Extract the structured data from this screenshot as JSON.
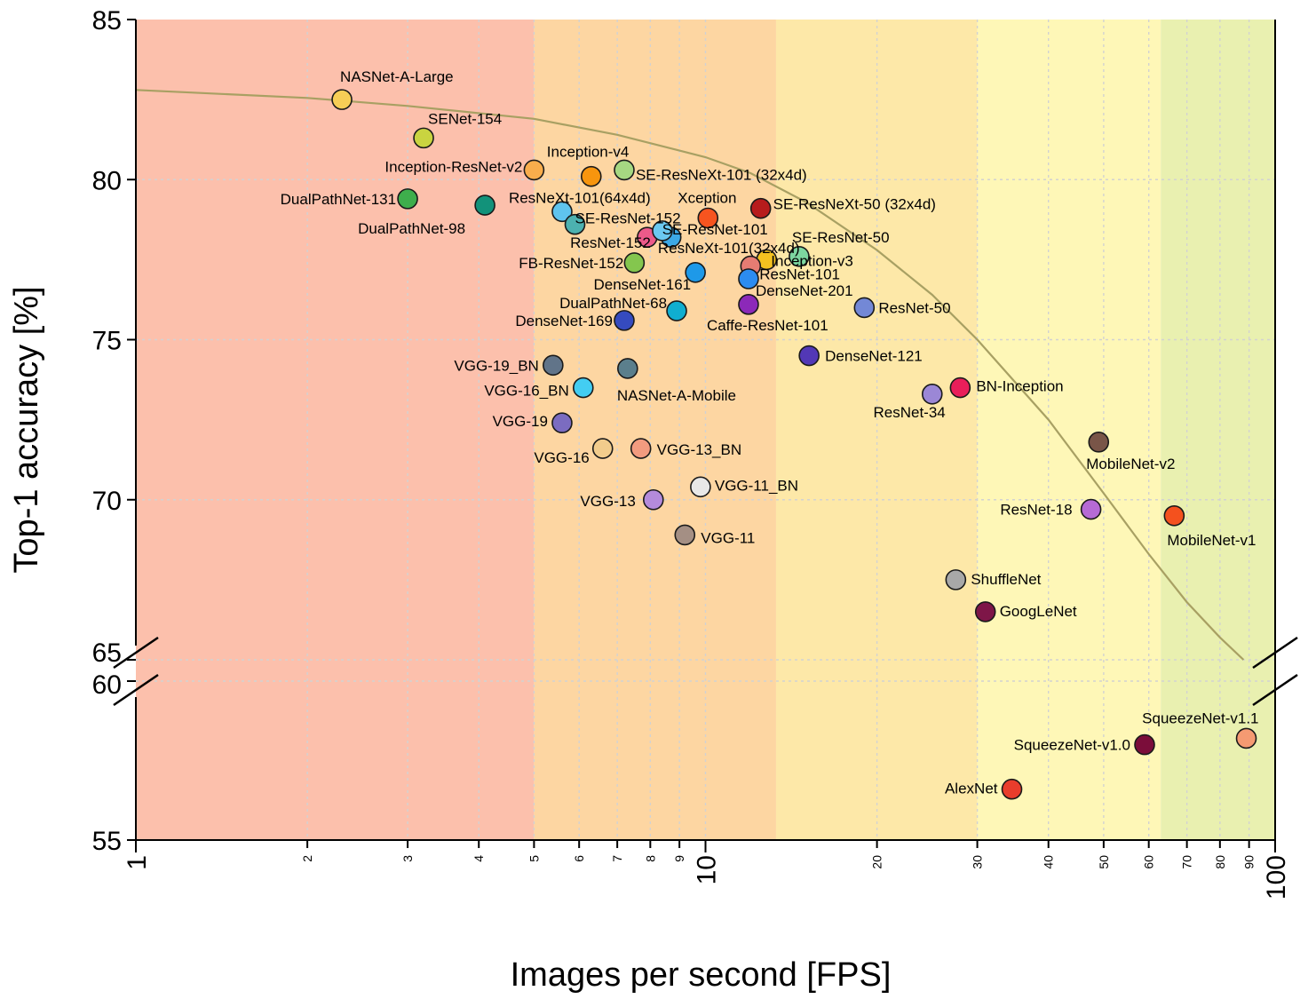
{
  "chart_data": {
    "type": "scatter",
    "title": "",
    "xlabel": "Images per second [FPS]",
    "ylabel": "Top-1 accuracy [%]",
    "xscale": "log",
    "xlim": [
      1,
      100
    ],
    "ylim": [
      55,
      85
    ],
    "y_axis_break": {
      "from": 60,
      "to": 65
    },
    "grid": true,
    "legend": "none",
    "x_ticks": [
      {
        "value": 1,
        "label": "1",
        "major": true
      },
      {
        "value": 2,
        "label": "2",
        "major": false
      },
      {
        "value": 3,
        "label": "3",
        "major": false
      },
      {
        "value": 4,
        "label": "4",
        "major": false
      },
      {
        "value": 5,
        "label": "5",
        "major": false
      },
      {
        "value": 6,
        "label": "6",
        "major": false
      },
      {
        "value": 7,
        "label": "7",
        "major": false
      },
      {
        "value": 8,
        "label": "8",
        "major": false
      },
      {
        "value": 9,
        "label": "9",
        "major": false
      },
      {
        "value": 10,
        "label": "10",
        "major": true
      },
      {
        "value": 20,
        "label": "20",
        "major": false
      },
      {
        "value": 30,
        "label": "30",
        "major": false
      },
      {
        "value": 40,
        "label": "40",
        "major": false
      },
      {
        "value": 50,
        "label": "50",
        "major": false
      },
      {
        "value": 60,
        "label": "60",
        "major": false
      },
      {
        "value": 70,
        "label": "70",
        "major": false
      },
      {
        "value": 80,
        "label": "80",
        "major": false
      },
      {
        "value": 90,
        "label": "90",
        "major": false
      },
      {
        "value": 100,
        "label": "100",
        "major": true
      }
    ],
    "y_ticks": [
      {
        "value": 85,
        "label": "85"
      },
      {
        "value": 80,
        "label": "80"
      },
      {
        "value": 75,
        "label": "75"
      },
      {
        "value": 70,
        "label": "70"
      },
      {
        "value": 65,
        "label": "65"
      },
      {
        "value": 60,
        "label": "60"
      },
      {
        "value": 55,
        "label": "55"
      }
    ],
    "background_bands": [
      {
        "from": 1,
        "to": 5,
        "color": "#fcc0ac"
      },
      {
        "from": 5,
        "to": 13.3,
        "color": "#fdd6a2"
      },
      {
        "from": 13.3,
        "to": 30,
        "color": "#fde8a8"
      },
      {
        "from": 30,
        "to": 63,
        "color": "#fef7b7"
      },
      {
        "from": 63,
        "to": 100,
        "color": "#e9f0b0"
      }
    ],
    "pareto_curve": {
      "color": "#a8a063",
      "points": [
        [
          1,
          82.8
        ],
        [
          2,
          82.55
        ],
        [
          3,
          82.3
        ],
        [
          5,
          81.9
        ],
        [
          7,
          81.4
        ],
        [
          10,
          80.7
        ],
        [
          12,
          80.2
        ],
        [
          15,
          79.3
        ],
        [
          20,
          77.8
        ],
        [
          25,
          76.4
        ],
        [
          30,
          75.0
        ],
        [
          40,
          72.5
        ],
        [
          50,
          70.2
        ],
        [
          60,
          68.3
        ],
        [
          70,
          66.8
        ],
        [
          80,
          65.7
        ],
        [
          88,
          65.0
        ]
      ]
    },
    "points": [
      {
        "name": "NASNet-A-Large",
        "fps": 2.3,
        "acc": 82.5,
        "color": "#f7ce56",
        "anchor": "start",
        "dx": -2,
        "dy": -20
      },
      {
        "name": "SENet-154",
        "fps": 3.2,
        "acc": 81.3,
        "color": "#c9d440",
        "anchor": "start",
        "dx": 5,
        "dy": -16
      },
      {
        "name": "Inception-ResNet-v2",
        "fps": 5.0,
        "acc": 80.3,
        "color": "#f8ad4c",
        "anchor": "end",
        "dx": -13,
        "dy": 2
      },
      {
        "name": "Inception-v4",
        "fps": 6.3,
        "acc": 80.1,
        "color": "#f7950e",
        "anchor": "start",
        "dx": -50,
        "dy": -22
      },
      {
        "name": "SE-ResNeXt-101 (32x4d)",
        "fps": 7.2,
        "acc": 80.3,
        "color": "#a6d882",
        "anchor": "start",
        "dx": 13,
        "dy": 11
      },
      {
        "name": "DualPathNet-131",
        "fps": 3.0,
        "acc": 79.4,
        "color": "#3eae4c",
        "anchor": "end",
        "dx": -13,
        "dy": 6
      },
      {
        "name": "DualPathNet-98",
        "fps": 4.1,
        "acc": 79.2,
        "color": "#12927a",
        "anchor": "end",
        "dx": -22,
        "dy": 32
      },
      {
        "name": "ResNeXt-101(64x4d)",
        "fps": 5.6,
        "acc": 79.0,
        "color": "#5fc4ee",
        "anchor": "start",
        "dx": -60,
        "dy": -10
      },
      {
        "name": "SE-ResNet-152",
        "fps": 5.9,
        "acc": 78.6,
        "color": "#4cb1b0",
        "anchor": "start",
        "dx": 0,
        "dy": -1
      },
      {
        "name": "Xception",
        "fps": 10.1,
        "acc": 78.8,
        "color": "#f6541f",
        "anchor": "start",
        "dx": -34,
        "dy": -17
      },
      {
        "name": "SE-ResNeXt-50 (32x4d)",
        "fps": 12.5,
        "acc": 79.1,
        "color": "#b71c1c",
        "anchor": "start",
        "dx": 14,
        "dy": 1
      },
      {
        "name": "SE-ResNet-101",
        "fps": 8.7,
        "acc": 78.2,
        "color": "#3ca8e6",
        "anchor": "start",
        "dx": -10,
        "dy": -3
      },
      {
        "name": "ResNet-152",
        "fps": 7.9,
        "acc": 78.2,
        "color": "#ec5a8a",
        "anchor": "end",
        "dx": 4,
        "dy": 12
      },
      {
        "name": "ResNeXt-101(32x4d)",
        "fps": 8.4,
        "acc": 78.4,
        "color": "#6bc8f0",
        "anchor": "start",
        "dx": -5,
        "dy": 25
      },
      {
        "name": "SE-ResNet-50",
        "fps": 14.6,
        "acc": 77.6,
        "color": "#7dd6a0",
        "anchor": "start",
        "dx": -8,
        "dy": -16
      },
      {
        "name": "FB-ResNet-152",
        "fps": 7.5,
        "acc": 77.4,
        "color": "#84c64e",
        "anchor": "end",
        "dx": -12,
        "dy": 6
      },
      {
        "name": "Inception-v3",
        "fps": 12.8,
        "acc": 77.5,
        "color": "#f4c220",
        "anchor": "start",
        "dx": 5,
        "dy": 7
      },
      {
        "name": "ResNet-101",
        "fps": 12.0,
        "acc": 77.3,
        "color": "#e67c73",
        "anchor": "start",
        "dx": 10,
        "dy": 15
      },
      {
        "name": "DenseNet-161",
        "fps": 9.6,
        "acc": 77.1,
        "color": "#1e99e8",
        "anchor": "end",
        "dx": -5,
        "dy": 19
      },
      {
        "name": "DenseNet-201",
        "fps": 11.9,
        "acc": 76.9,
        "color": "#2c8cf0",
        "anchor": "start",
        "dx": 8,
        "dy": 19
      },
      {
        "name": "ResNet-50",
        "fps": 19.0,
        "acc": 76.0,
        "color": "#7388d6",
        "anchor": "start",
        "dx": 16,
        "dy": 6
      },
      {
        "name": "DualPathNet-68",
        "fps": 8.9,
        "acc": 75.9,
        "color": "#10aed0",
        "anchor": "end",
        "dx": -11,
        "dy": -3
      },
      {
        "name": "Caffe-ResNet-101",
        "fps": 11.9,
        "acc": 76.1,
        "color": "#8c29b9",
        "anchor": "start",
        "dx": -47,
        "dy": 29
      },
      {
        "name": "DenseNet-169",
        "fps": 7.2,
        "acc": 75.6,
        "color": "#354bbf",
        "anchor": "end",
        "dx": -13,
        "dy": 6
      },
      {
        "name": "DenseNet-121",
        "fps": 15.2,
        "acc": 74.5,
        "color": "#5238b6",
        "anchor": "start",
        "dx": 18,
        "dy": 6
      },
      {
        "name": "VGG-19_BN",
        "fps": 5.4,
        "acc": 74.2,
        "color": "#617489",
        "anchor": "end",
        "dx": -16,
        "dy": 6
      },
      {
        "name": "NASNet-A-Mobile",
        "fps": 7.3,
        "acc": 74.1,
        "color": "#5b7f8c",
        "anchor": "start",
        "dx": -12,
        "dy": 36
      },
      {
        "name": "VGG-16_BN",
        "fps": 6.1,
        "acc": 73.5,
        "color": "#43cdf2",
        "anchor": "end",
        "dx": -16,
        "dy": 9
      },
      {
        "name": "BN-Inception",
        "fps": 28.0,
        "acc": 73.5,
        "color": "#e91e5a",
        "anchor": "start",
        "dx": 18,
        "dy": 4
      },
      {
        "name": "ResNet-34",
        "fps": 25.0,
        "acc": 73.3,
        "color": "#9b87d6",
        "anchor": "end",
        "dx": 15,
        "dy": 26
      },
      {
        "name": "VGG-19",
        "fps": 5.6,
        "acc": 72.4,
        "color": "#7b6cc0",
        "anchor": "end",
        "dx": -16,
        "dy": 4
      },
      {
        "name": "VGG-16",
        "fps": 6.6,
        "acc": 71.6,
        "color": "#f2cc8c",
        "anchor": "end",
        "dx": -15,
        "dy": 16
      },
      {
        "name": "VGG-13_BN",
        "fps": 7.7,
        "acc": 71.6,
        "color": "#f29b7f",
        "anchor": "start",
        "dx": 18,
        "dy": 7
      },
      {
        "name": "MobileNet-v2",
        "fps": 49.0,
        "acc": 71.8,
        "color": "#795548",
        "anchor": "start",
        "dx": -14,
        "dy": 30
      },
      {
        "name": "VGG-13",
        "fps": 8.1,
        "acc": 70.0,
        "color": "#b48bdb",
        "anchor": "end",
        "dx": -20,
        "dy": 7
      },
      {
        "name": "VGG-11_BN",
        "fps": 9.8,
        "acc": 70.4,
        "color": "#e8e8e8",
        "anchor": "start",
        "dx": 16,
        "dy": 4
      },
      {
        "name": "ResNet-18",
        "fps": 47.5,
        "acc": 69.7,
        "color": "#b66ad5",
        "anchor": "end",
        "dx": -21,
        "dy": 6
      },
      {
        "name": "MobileNet-v1",
        "fps": 66.5,
        "acc": 69.5,
        "color": "#f4511e",
        "anchor": "start",
        "dx": -8,
        "dy": 33
      },
      {
        "name": "VGG-11",
        "fps": 9.2,
        "acc": 68.9,
        "color": "#a48f84",
        "anchor": "start",
        "dx": 18,
        "dy": 9
      },
      {
        "name": "ShuffleNet",
        "fps": 27.5,
        "acc": 67.5,
        "color": "#a8a8a8",
        "anchor": "start",
        "dx": 17,
        "dy": 5
      },
      {
        "name": "GoogLeNet",
        "fps": 31.0,
        "acc": 66.5,
        "color": "#7e1648",
        "anchor": "start",
        "dx": 16,
        "dy": 5
      },
      {
        "name": "SqueezeNet-v1.1",
        "fps": 89.0,
        "acc": 58.2,
        "color": "#f59a72",
        "anchor": "end",
        "dx": 14,
        "dy": -17
      },
      {
        "name": "SqueezeNet-v1.0",
        "fps": 59.0,
        "acc": 58.0,
        "color": "#7b0d3a",
        "anchor": "end",
        "dx": -16,
        "dy": 6
      },
      {
        "name": "AlexNet",
        "fps": 34.5,
        "acc": 56.6,
        "color": "#e93d2c",
        "anchor": "end",
        "dx": -16,
        "dy": 5
      }
    ]
  }
}
